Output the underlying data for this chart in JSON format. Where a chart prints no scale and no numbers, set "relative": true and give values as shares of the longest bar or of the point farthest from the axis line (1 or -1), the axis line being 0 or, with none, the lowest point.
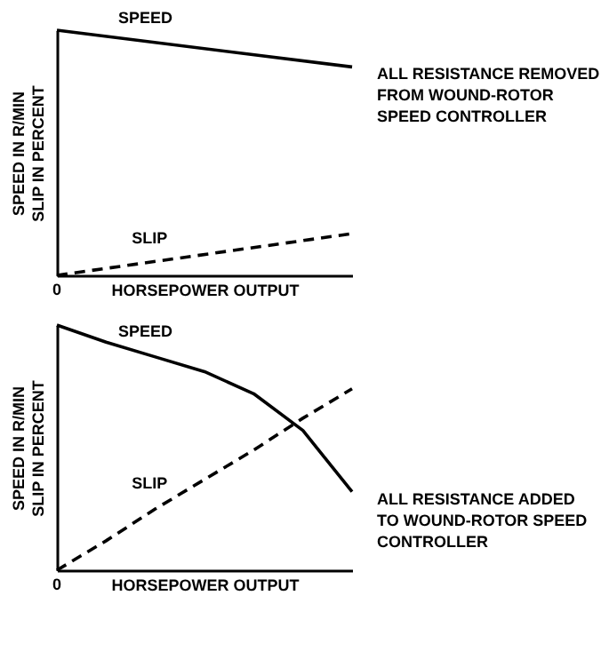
{
  "chart_data": [
    {
      "type": "line",
      "relative": true,
      "xlabel": "HORSEPOWER OUTPUT",
      "ylabel": "SPEED IN R/MIN\nSLIP IN PERCENT",
      "categories": [
        null,
        null
      ],
      "series": [
        {
          "name": "SPEED",
          "color": "#000000",
          "line_style": "solid",
          "values": [
            1,
            0.85
          ]
        },
        {
          "name": "SLIP",
          "color": "#000000",
          "line_style": "dashed",
          "values": [
            0,
            0.17
          ]
        }
      ],
      "annotations": [
        {
          "text": "0",
          "y": 0
        },
        "ALL RESISTANCE REMOVED\nFROM WOUND-ROTOR\nSPEED CONTROLLER"
      ]
    },
    {
      "type": "line",
      "relative": true,
      "xlabel": "HORSEPOWER OUTPUT",
      "ylabel": "SPEED IN R/MIN\nSLIP IN PERCENT",
      "categories": [
        null,
        null,
        null,
        null,
        null,
        null,
        null
      ],
      "series": [
        {
          "name": "SPEED",
          "color": "#000000",
          "line_style": "solid",
          "values": [
            1,
            0.93,
            0.87,
            0.81,
            0.72,
            0.57,
            0.32
          ]
        },
        {
          "name": "SLIP",
          "color": "#000000",
          "line_style": "dashed",
          "values": [
            0,
            0.12,
            0.25,
            0.37,
            0.49,
            0.62,
            0.74
          ]
        }
      ],
      "annotations": [
        {
          "text": "0",
          "y": 0
        },
        "ALL RESISTANCE ADDED\nTO WOUND-ROTOR SPEED\nCONTROLLER"
      ]
    }
  ]
}
